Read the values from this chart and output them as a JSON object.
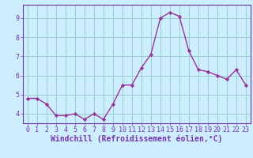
{
  "x": [
    0,
    1,
    2,
    3,
    4,
    5,
    6,
    7,
    8,
    9,
    10,
    11,
    12,
    13,
    14,
    15,
    16,
    17,
    18,
    19,
    20,
    21,
    22,
    23
  ],
  "y": [
    4.8,
    4.8,
    4.5,
    3.9,
    3.9,
    4.0,
    3.7,
    4.0,
    3.7,
    4.5,
    5.5,
    5.5,
    6.4,
    7.1,
    9.0,
    9.3,
    9.1,
    7.3,
    6.3,
    6.2,
    6.0,
    5.8,
    6.3,
    5.5
  ],
  "line_color": "#993399",
  "marker": "D",
  "marker_size": 2.2,
  "line_width": 1.0,
  "bg_color": "#cceeff",
  "grid_color": "#99cccc",
  "xlabel": "Windchill (Refroidissement éolien,°C)",
  "ylim": [
    3.5,
    9.7
  ],
  "xlim": [
    -0.5,
    23.5
  ],
  "yticks": [
    4,
    5,
    6,
    7,
    8,
    9
  ],
  "xticks": [
    0,
    1,
    2,
    3,
    4,
    5,
    6,
    7,
    8,
    9,
    10,
    11,
    12,
    13,
    14,
    15,
    16,
    17,
    18,
    19,
    20,
    21,
    22,
    23
  ],
  "tick_fontsize": 6,
  "xlabel_fontsize": 7,
  "axes_color": "#7733aa",
  "spine_color": "#7733aa"
}
